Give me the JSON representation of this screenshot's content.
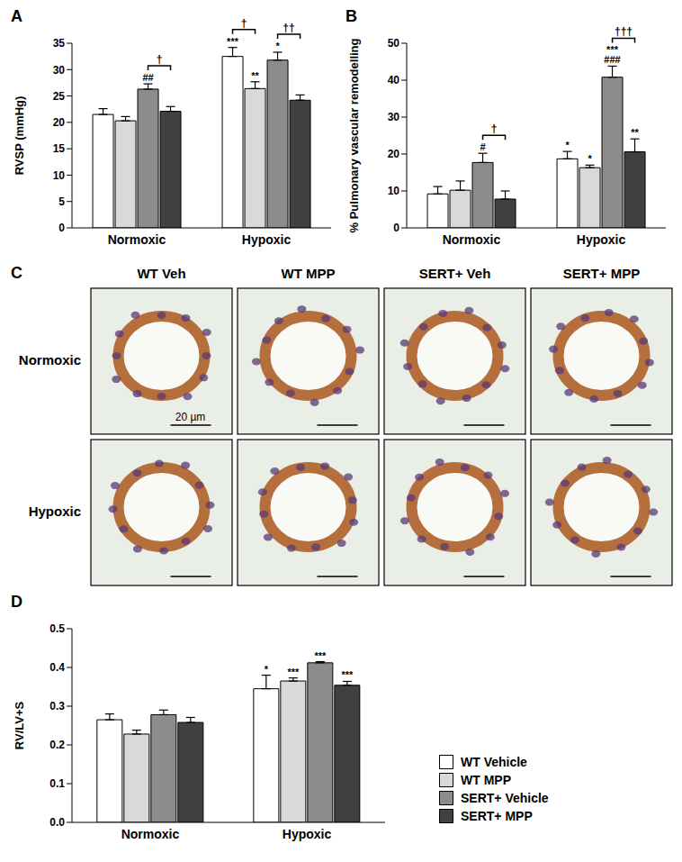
{
  "chart_data": [
    {
      "type": "bar",
      "title": "A",
      "y_label": "RVSP (mmHg)",
      "categories": [
        "Normoxic",
        "Hypoxic"
      ],
      "series": [
        {
          "name": "WT Vehicle",
          "color": "#ffffff",
          "values": [
            21.5,
            32.5
          ],
          "errors": [
            1.1,
            1.7
          ]
        },
        {
          "name": "WT MPP",
          "color": "#d9d9d9",
          "values": [
            20.3,
            26.4
          ],
          "errors": [
            0.8,
            1.3
          ]
        },
        {
          "name": "SERT+ Vehicle",
          "color": "#8c8c8c",
          "values": [
            26.3,
            31.8
          ],
          "errors": [
            1.0,
            1.5
          ]
        },
        {
          "name": "SERT+ MPP",
          "color": "#404040",
          "values": [
            22.1,
            24.2
          ],
          "errors": [
            0.9,
            1.0
          ]
        }
      ],
      "ylim": [
        0,
        35
      ],
      "yticks": [
        0,
        5,
        10,
        15,
        20,
        25,
        30,
        35
      ],
      "annotations": [
        {
          "category": "Normoxic",
          "series": "SERT+ Vehicle",
          "text": "##"
        },
        {
          "category": "Normoxic",
          "from": "SERT+ Vehicle",
          "to": "SERT+ MPP",
          "text": "†"
        },
        {
          "category": "Hypoxic",
          "series": "WT Vehicle",
          "text": "***"
        },
        {
          "category": "Hypoxic",
          "series": "WT MPP",
          "text": "**"
        },
        {
          "category": "Hypoxic",
          "series": "SERT+ Vehicle",
          "text": "*"
        },
        {
          "category": "Hypoxic",
          "from": "WT Vehicle",
          "to": "WT MPP",
          "text": "†"
        },
        {
          "category": "Hypoxic",
          "from": "SERT+ Vehicle",
          "to": "SERT+ MPP",
          "text": "††"
        }
      ]
    },
    {
      "type": "bar",
      "title": "B",
      "y_label": "% Pulmonary vascular remodelling",
      "categories": [
        "Normoxic",
        "Hypoxic"
      ],
      "series": [
        {
          "name": "WT Vehicle",
          "color": "#ffffff",
          "values": [
            9.2,
            18.7
          ],
          "errors": [
            2.0,
            2.0
          ]
        },
        {
          "name": "WT MPP",
          "color": "#d9d9d9",
          "values": [
            10.2,
            16.3
          ],
          "errors": [
            2.5,
            0.7
          ]
        },
        {
          "name": "SERT+ Vehicle",
          "color": "#8c8c8c",
          "values": [
            17.7,
            40.8
          ],
          "errors": [
            2.5,
            3.0
          ]
        },
        {
          "name": "SERT+ MPP",
          "color": "#404040",
          "values": [
            7.8,
            20.6
          ],
          "errors": [
            2.2,
            3.5
          ]
        }
      ],
      "ylim": [
        0,
        50
      ],
      "yticks": [
        0,
        10,
        20,
        30,
        40,
        50
      ],
      "annotations": [
        {
          "category": "Normoxic",
          "series": "SERT+ Vehicle",
          "text": "#"
        },
        {
          "category": "Normoxic",
          "from": "SERT+ Vehicle",
          "to": "SERT+ MPP",
          "text": "†"
        },
        {
          "category": "Hypoxic",
          "series": "WT Vehicle",
          "text": "*"
        },
        {
          "category": "Hypoxic",
          "series": "WT MPP",
          "text": "*"
        },
        {
          "category": "Hypoxic",
          "series": "SERT+ Vehicle",
          "text": "***"
        },
        {
          "category": "Hypoxic",
          "series": "SERT+ Vehicle",
          "text": "###"
        },
        {
          "category": "Hypoxic",
          "series": "SERT+ MPP",
          "text": "**"
        },
        {
          "category": "Hypoxic",
          "from": "SERT+ Vehicle",
          "to": "SERT+ MPP",
          "text": "†††"
        }
      ]
    },
    {
      "type": "bar",
      "title": "D",
      "y_label": "RV/LV+S",
      "categories": [
        "Normoxic",
        "Hypoxic"
      ],
      "series": [
        {
          "name": "WT Vehicle",
          "color": "#ffffff",
          "values": [
            0.265,
            0.345
          ],
          "errors": [
            0.015,
            0.035
          ]
        },
        {
          "name": "WT MPP",
          "color": "#d9d9d9",
          "values": [
            0.228,
            0.365
          ],
          "errors": [
            0.01,
            0.008
          ]
        },
        {
          "name": "SERT+ Vehicle",
          "color": "#8c8c8c",
          "values": [
            0.278,
            0.412
          ],
          "errors": [
            0.012,
            0.003
          ]
        },
        {
          "name": "SERT+ MPP",
          "color": "#404040",
          "values": [
            0.258,
            0.354
          ],
          "errors": [
            0.013,
            0.01
          ]
        }
      ],
      "ylim": [
        0,
        0.5
      ],
      "yticks": [
        {
          "value": 0,
          "label": "0.0"
        },
        0.1,
        0.2,
        0.3,
        0.4,
        0.5
      ],
      "legend": "right",
      "annotations": [
        {
          "category": "Hypoxic",
          "series": "WT Vehicle",
          "text": "*"
        },
        {
          "category": "Hypoxic",
          "series": "WT MPP",
          "text": "***"
        },
        {
          "category": "Hypoxic",
          "series": "SERT+ Vehicle",
          "text": "***"
        },
        {
          "category": "Hypoxic",
          "series": "SERT+ MPP",
          "text": "***"
        }
      ]
    }
  ],
  "image_panel": {
    "title": "C",
    "columns": [
      "WT Veh",
      "WT MPP",
      "SERT+ Veh",
      "SERT+ MPP"
    ],
    "rows": [
      "Normoxic",
      "Hypoxic"
    ],
    "scale_bar": "20 µm"
  }
}
